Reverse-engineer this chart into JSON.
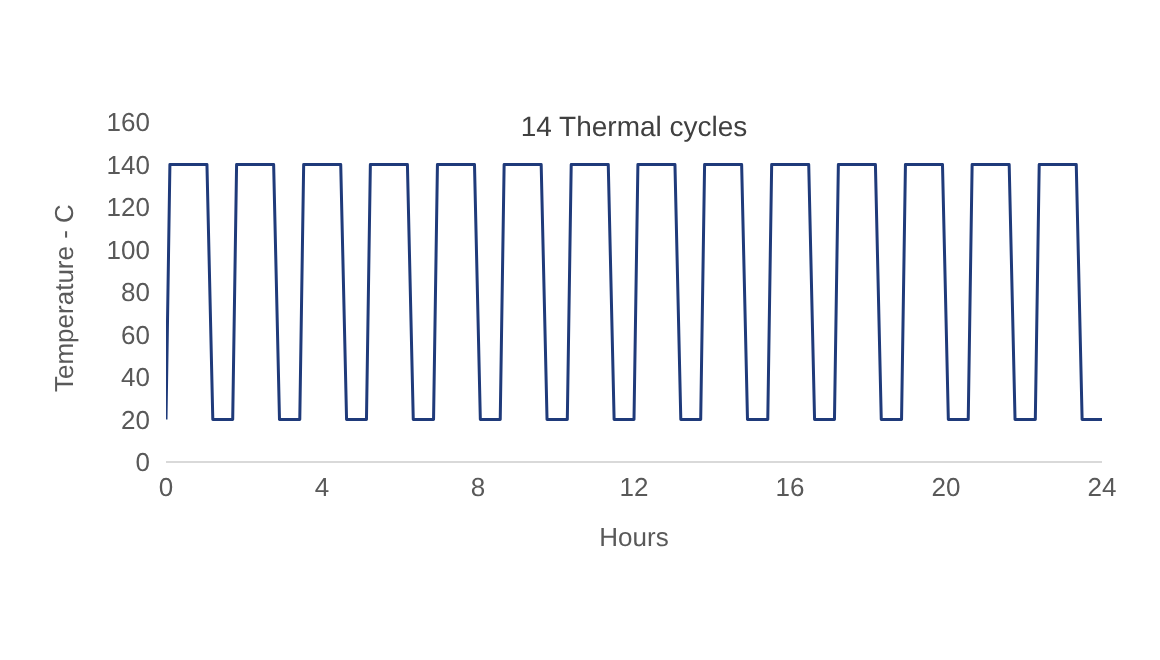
{
  "chart_data": {
    "type": "line",
    "title": "14 Thermal cycles",
    "xlabel": "Hours",
    "ylabel": "Temperature - C",
    "series": [
      {
        "color": "#1f3a7a",
        "x": [
          0,
          0.1,
          1.05,
          1.2,
          1.71,
          1.81,
          2.76,
          2.91,
          3.43,
          3.53,
          4.48,
          4.63,
          5.14,
          5.24,
          6.19,
          6.34,
          6.86,
          6.96,
          7.91,
          8.06,
          8.57,
          8.67,
          9.62,
          9.77,
          10.29,
          10.39,
          11.34,
          11.49,
          12.0,
          12.1,
          13.05,
          13.2,
          13.71,
          13.81,
          14.76,
          14.91,
          15.43,
          15.53,
          16.48,
          16.63,
          17.14,
          17.24,
          18.19,
          18.34,
          18.86,
          18.96,
          19.91,
          20.06,
          20.57,
          20.67,
          21.62,
          21.77,
          22.29,
          22.39,
          23.34,
          23.49,
          24
        ],
        "values": [
          20,
          140,
          140,
          20,
          20,
          140,
          140,
          20,
          20,
          140,
          140,
          20,
          20,
          140,
          140,
          20,
          20,
          140,
          140,
          20,
          20,
          140,
          140,
          20,
          20,
          140,
          140,
          20,
          20,
          140,
          140,
          20,
          20,
          140,
          140,
          20,
          20,
          140,
          140,
          20,
          20,
          140,
          140,
          20,
          20,
          140,
          140,
          20,
          20,
          140,
          140,
          20,
          20,
          140,
          140,
          20,
          20
        ]
      }
    ],
    "xlim": [
      0,
      24
    ],
    "xticks": [
      0,
      4,
      8,
      12,
      16,
      20,
      24
    ],
    "ylim": [
      0,
      160
    ],
    "yticks": [
      0,
      20,
      40,
      60,
      80,
      100,
      120,
      140,
      160
    ],
    "grid": false,
    "legend": false,
    "marker": "none",
    "line_style": "solid"
  }
}
